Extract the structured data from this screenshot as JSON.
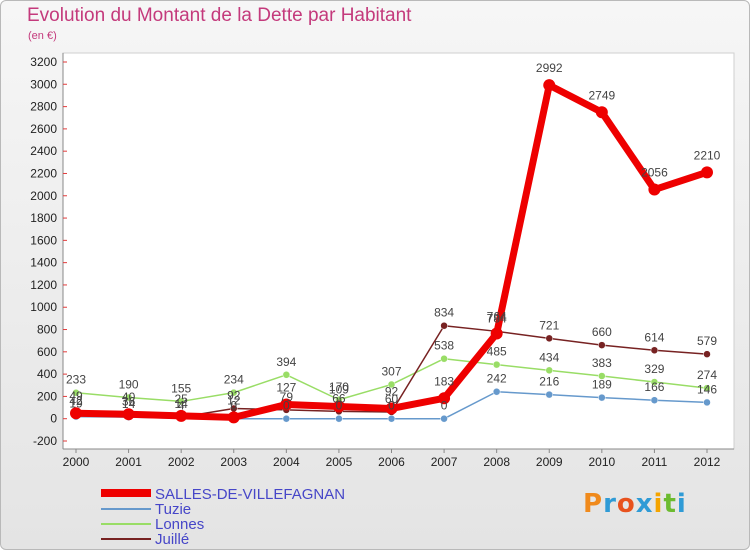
{
  "chart_data": {
    "type": "line",
    "title": "Evolution du Montant de la Dette par Habitant",
    "subtitle": "(en €)",
    "x": [
      2000,
      2001,
      2002,
      2003,
      2004,
      2005,
      2006,
      2007,
      2008,
      2009,
      2010,
      2011,
      2012
    ],
    "ylim": [
      -200,
      3200
    ],
    "yticks": [
      -200,
      0,
      200,
      400,
      600,
      800,
      1000,
      1200,
      1400,
      1600,
      1800,
      2000,
      2200,
      2400,
      2600,
      2800,
      3000,
      3200
    ],
    "grid": false,
    "legend": "bottom-left",
    "series": [
      {
        "name": "SALLES-DE-VILLEFAGNAN",
        "color": "#ee0000",
        "values": [
          49,
          40,
          25,
          12,
          127,
          109,
          92,
          183,
          764,
          2992,
          2749,
          2056,
          2210
        ]
      },
      {
        "name": "Tuzie",
        "color": "#6699cc",
        "values": [
          19,
          14,
          4,
          0,
          0,
          0,
          0,
          0,
          242,
          216,
          189,
          166,
          146
        ]
      },
      {
        "name": "Lonnes",
        "color": "#99dd66",
        "values": [
          233,
          190,
          155,
          234,
          394,
          170,
          307,
          538,
          485,
          434,
          383,
          329,
          274
        ]
      },
      {
        "name": "Juillé",
        "color": "#772222",
        "values": [
          42,
          36,
          14,
          92,
          79,
          66,
          60,
          834,
          784,
          721,
          660,
          614,
          579
        ]
      }
    ]
  },
  "logo": {
    "text": "Proxiti",
    "colors": [
      "#f08a1c",
      "#2f9bd6",
      "#e8521e",
      "#2f9bd6",
      "#f5a400",
      "#6cbb2f",
      "#2f9bd6"
    ]
  }
}
